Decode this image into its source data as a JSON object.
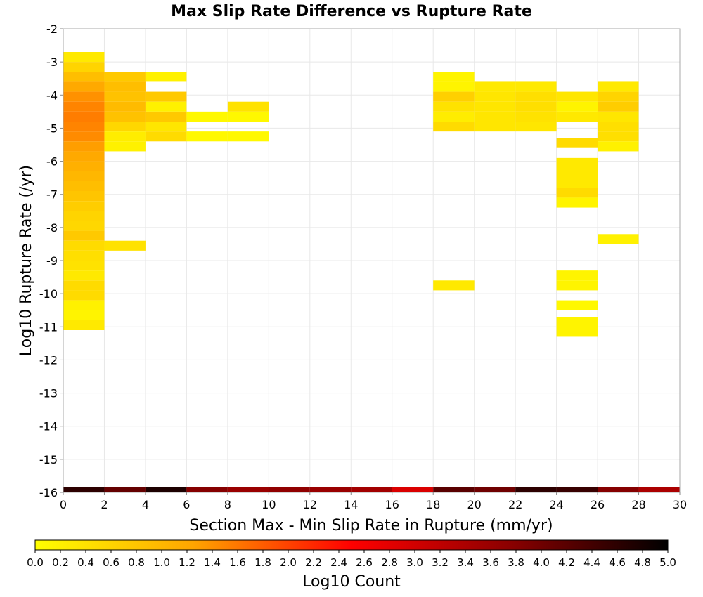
{
  "chart_data": {
    "type": "heatmap",
    "title": "Max Slip Rate Difference vs Rupture Rate",
    "xlabel": "Section Max - Min Slip Rate in Rupture (mm/yr)",
    "ylabel": "Log10 Rupture Rate (/yr)",
    "xlim": [
      0,
      30
    ],
    "ylim": [
      -16,
      -2
    ],
    "x_ticks": [
      "0",
      "2",
      "4",
      "6",
      "8",
      "10",
      "12",
      "14",
      "16",
      "18",
      "20",
      "22",
      "24",
      "26",
      "28",
      "30"
    ],
    "y_ticks": [
      "-2",
      "-3",
      "-4",
      "-5",
      "-6",
      "-7",
      "-8",
      "-9",
      "-10",
      "-11",
      "-12",
      "-13",
      "-14",
      "-15",
      "-16"
    ],
    "grid": true,
    "colorbar": {
      "label": "Log10 Count",
      "range": [
        0,
        5
      ],
      "ticks": [
        "0.0",
        "0.2",
        "0.4",
        "0.6",
        "0.8",
        "1.0",
        "1.2",
        "1.4",
        "1.6",
        "1.8",
        "2.0",
        "2.2",
        "2.4",
        "2.6",
        "2.8",
        "3.0",
        "3.2",
        "3.4",
        "3.6",
        "3.8",
        "4.0",
        "4.2",
        "4.4",
        "4.6",
        "4.8",
        "5.0"
      ],
      "stops": [
        "#ffff00",
        "#ffa500",
        "#ff0000",
        "#8b0000",
        "#000000"
      ],
      "placement": "bottom"
    },
    "cells": [
      [
        0,
        -2.85,
        0.3
      ],
      [
        0,
        -3.15,
        0.6
      ],
      [
        0,
        -3.45,
        0.9
      ],
      [
        0,
        -3.75,
        1.2
      ],
      [
        0,
        -4.05,
        1.4
      ],
      [
        0,
        -4.35,
        1.5
      ],
      [
        0,
        -4.65,
        1.55
      ],
      [
        0,
        -4.95,
        1.5
      ],
      [
        0,
        -5.25,
        1.45
      ],
      [
        0,
        -5.55,
        1.3
      ],
      [
        0,
        -5.85,
        1.2
      ],
      [
        0,
        -6.15,
        1.1
      ],
      [
        0,
        -6.45,
        1.0
      ],
      [
        0,
        -6.75,
        0.9
      ],
      [
        0,
        -7.05,
        0.8
      ],
      [
        0,
        -7.35,
        0.7
      ],
      [
        0,
        -7.65,
        0.6
      ],
      [
        0,
        -7.95,
        0.55
      ],
      [
        0,
        -8.25,
        0.75
      ],
      [
        0,
        -8.55,
        0.5
      ],
      [
        0,
        -8.85,
        0.45
      ],
      [
        0,
        -9.15,
        0.4
      ],
      [
        0,
        -9.45,
        0.3
      ],
      [
        0,
        -9.75,
        0.5
      ],
      [
        0,
        -10.05,
        0.5
      ],
      [
        0,
        -10.35,
        0.2
      ],
      [
        0,
        -10.65,
        0.15
      ],
      [
        0,
        -10.95,
        0.3
      ],
      [
        2,
        -3.45,
        0.75
      ],
      [
        2,
        -3.75,
        0.9
      ],
      [
        2,
        -4.05,
        0.85
      ],
      [
        2,
        -4.35,
        0.95
      ],
      [
        2,
        -4.65,
        0.85
      ],
      [
        2,
        -4.95,
        0.55
      ],
      [
        2,
        -5.25,
        0.25
      ],
      [
        2,
        -5.55,
        0.2
      ],
      [
        2,
        -8.55,
        0.4
      ],
      [
        4,
        -3.45,
        0.2
      ],
      [
        4,
        -4.05,
        0.75
      ],
      [
        4,
        -4.35,
        0.2
      ],
      [
        4,
        -4.65,
        0.75
      ],
      [
        4,
        -4.95,
        0.35
      ],
      [
        4,
        -5.25,
        0.5
      ],
      [
        6,
        -4.65,
        0.1
      ],
      [
        6,
        -5.25,
        0.1
      ],
      [
        8,
        -4.35,
        0.4
      ],
      [
        8,
        -4.65,
        0.1
      ],
      [
        8,
        -5.25,
        0.1
      ],
      [
        18,
        -3.45,
        0.15
      ],
      [
        18,
        -3.75,
        0.15
      ],
      [
        18,
        -4.05,
        0.65
      ],
      [
        18,
        -4.35,
        0.4
      ],
      [
        18,
        -4.65,
        0.25
      ],
      [
        18,
        -4.95,
        0.5
      ],
      [
        18,
        -9.75,
        0.3
      ],
      [
        20,
        -3.75,
        0.3
      ],
      [
        20,
        -4.05,
        0.35
      ],
      [
        20,
        -4.35,
        0.35
      ],
      [
        20,
        -4.65,
        0.35
      ],
      [
        20,
        -4.95,
        0.35
      ],
      [
        22,
        -3.75,
        0.3
      ],
      [
        22,
        -4.05,
        0.45
      ],
      [
        22,
        -4.35,
        0.45
      ],
      [
        22,
        -4.65,
        0.4
      ],
      [
        22,
        -4.95,
        0.35
      ],
      [
        24,
        -4.05,
        0.35
      ],
      [
        24,
        -4.35,
        0.15
      ],
      [
        24,
        -4.65,
        0.3
      ],
      [
        24,
        -5.45,
        0.5
      ],
      [
        24,
        -6.05,
        0.3
      ],
      [
        24,
        -6.35,
        0.3
      ],
      [
        24,
        -6.65,
        0.3
      ],
      [
        24,
        -6.95,
        0.5
      ],
      [
        24,
        -7.25,
        0.15
      ],
      [
        24,
        -9.45,
        0.15
      ],
      [
        24,
        -9.75,
        0.15
      ],
      [
        24,
        -10.35,
        0.1
      ],
      [
        24,
        -10.85,
        0.15
      ],
      [
        24,
        -11.15,
        0.15
      ],
      [
        26,
        -3.75,
        0.3
      ],
      [
        26,
        -4.05,
        0.6
      ],
      [
        26,
        -4.35,
        0.7
      ],
      [
        26,
        -4.65,
        0.35
      ],
      [
        26,
        -4.95,
        0.45
      ],
      [
        26,
        -5.25,
        0.45
      ],
      [
        26,
        -5.55,
        0.2
      ],
      [
        26,
        -8.35,
        0.2
      ]
    ],
    "bottom_row": [
      [
        0,
        4.6
      ],
      [
        2,
        4.1
      ],
      [
        4,
        4.75
      ],
      [
        6,
        3.8
      ],
      [
        8,
        3.6
      ],
      [
        10,
        3.7
      ],
      [
        12,
        3.6
      ],
      [
        14,
        3.5
      ],
      [
        16,
        2.9
      ],
      [
        18,
        4.2
      ],
      [
        20,
        4.0
      ],
      [
        22,
        4.6
      ],
      [
        24,
        4.5
      ],
      [
        26,
        3.8
      ],
      [
        28,
        3.4
      ]
    ]
  }
}
